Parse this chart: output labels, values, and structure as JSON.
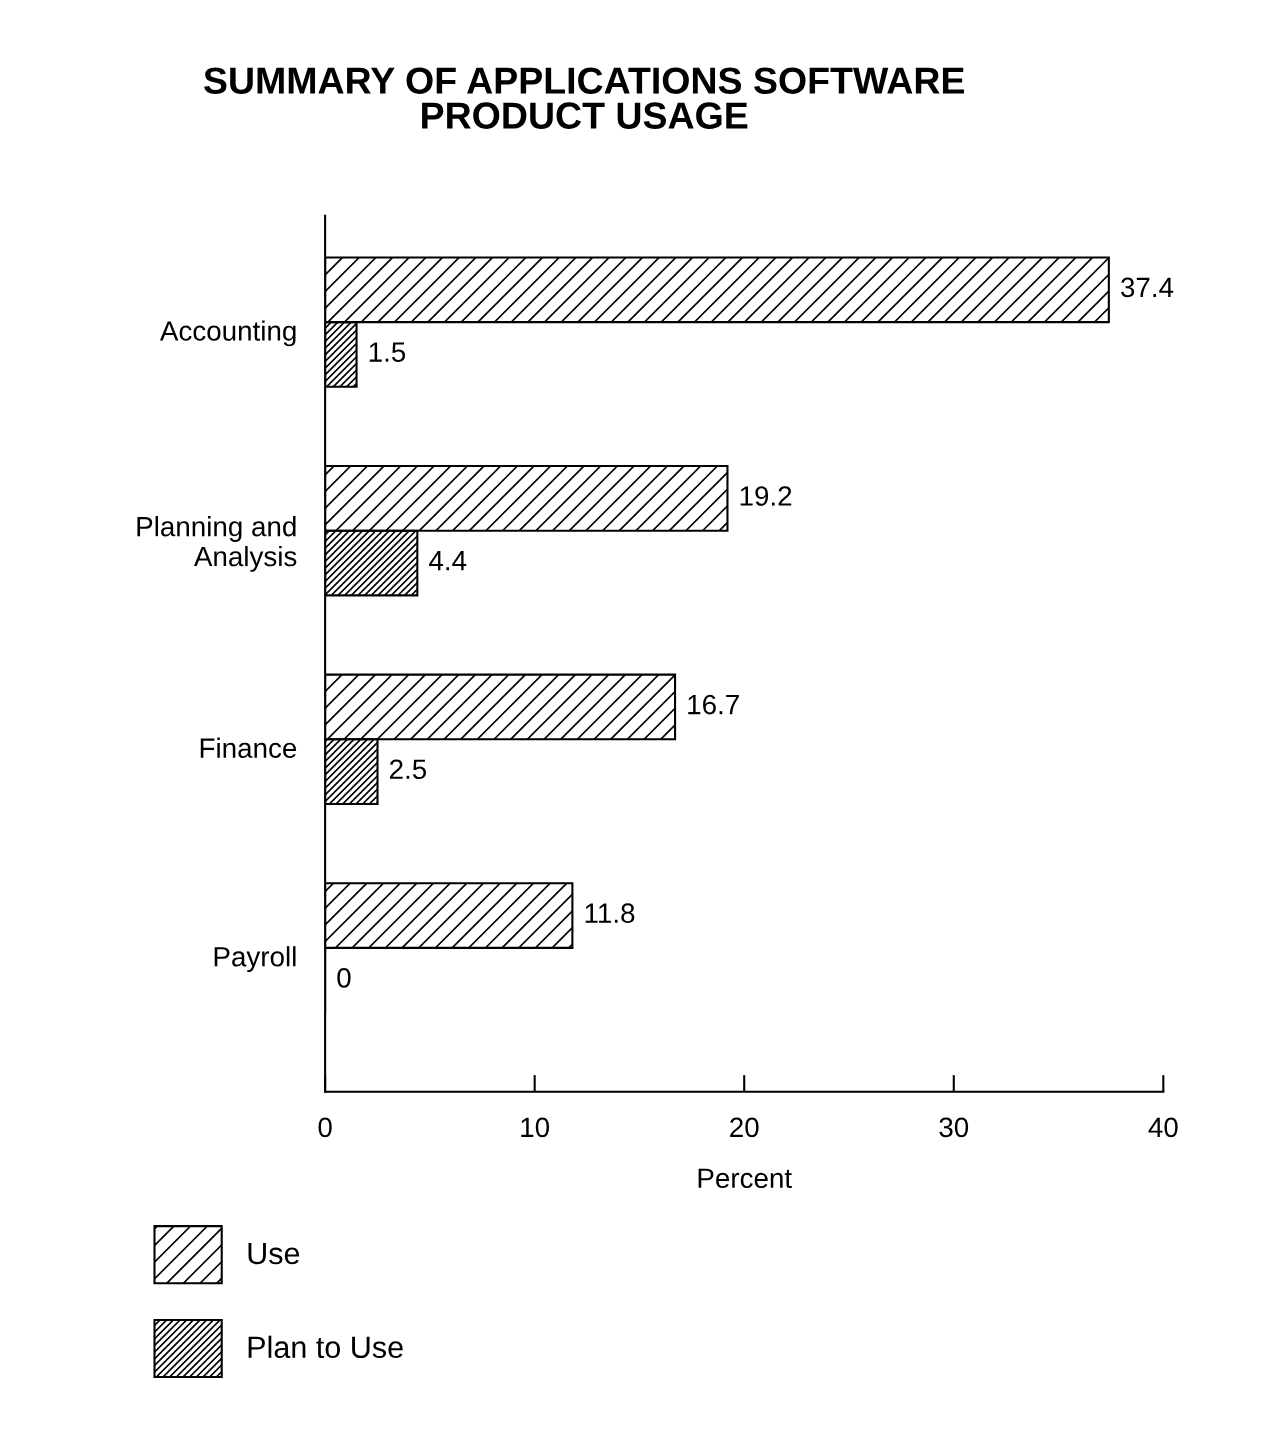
{
  "chart_data": {
    "type": "bar",
    "orientation": "horizontal",
    "title": "SUMMARY OF APPLICATIONS SOFTWARE\nPRODUCT USAGE",
    "xlabel": "Percent",
    "categories": [
      "Accounting",
      "Planning and\nAnalysis",
      "Finance",
      "Payroll"
    ],
    "series": [
      {
        "name": "Use",
        "color": "#000000",
        "values": [
          37.4,
          19.2,
          16.7,
          11.8
        ]
      },
      {
        "name": "Plan to Use",
        "color": "#000000",
        "values": [
          1.5,
          4.4,
          2.5,
          0
        ]
      }
    ],
    "xlim": [
      0,
      40
    ],
    "xticks": [
      0,
      10,
      20,
      30,
      40
    ],
    "data_labels": true,
    "grid": false,
    "legend": "bottom left"
  }
}
